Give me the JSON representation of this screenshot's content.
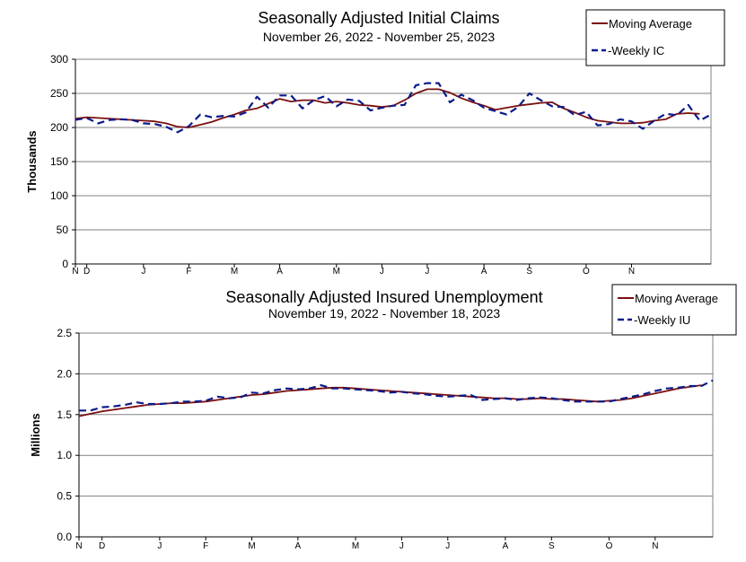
{
  "colors": {
    "moving_average": "#7b0f0f",
    "weekly": "#0b1b8a",
    "grid": "#808080",
    "axis": "#000000"
  },
  "chart_data": [
    {
      "type": "line",
      "title": "Seasonally Adjusted Initial Claims",
      "subtitle": "November 26, 2022 - November 25, 2023",
      "ylabel": "Thousands",
      "xlabel": "",
      "ylim": [
        0,
        300
      ],
      "yticks": [
        "0",
        "50",
        "100",
        "150",
        "200",
        "250",
        "300"
      ],
      "xticks": [
        {
          "label": "N",
          "week": 0
        },
        {
          "label": "D",
          "week": 1
        },
        {
          "label": "J",
          "week": 6
        },
        {
          "label": "F",
          "week": 10
        },
        {
          "label": "M",
          "week": 14
        },
        {
          "label": "A",
          "week": 18
        },
        {
          "label": "M",
          "week": 23
        },
        {
          "label": "J",
          "week": 27
        },
        {
          "label": "J",
          "week": 31
        },
        {
          "label": "A",
          "week": 36
        },
        {
          "label": "S",
          "week": 40
        },
        {
          "label": "O",
          "week": 45
        },
        {
          "label": "N",
          "week": 49
        }
      ],
      "legend": [
        "Moving Average",
        "-Weekly IC"
      ],
      "grid": true,
      "series": [
        {
          "name": "Moving Average",
          "style": "solid",
          "values": [
            213,
            215,
            214,
            213,
            212,
            211,
            210,
            209,
            206,
            201,
            200,
            204,
            208,
            214,
            219,
            225,
            228,
            235,
            242,
            238,
            240,
            240,
            236,
            238,
            236,
            233,
            232,
            230,
            232,
            240,
            250,
            256,
            256,
            251,
            243,
            237,
            232,
            226,
            229,
            232,
            234,
            236,
            237,
            228,
            222,
            215,
            210,
            208,
            206,
            206,
            207,
            210,
            212,
            220,
            221,
            220
          ]
        },
        {
          "name": "Weekly IC",
          "style": "dashed",
          "values": [
            211,
            214,
            206,
            211,
            212,
            211,
            206,
            205,
            201,
            193,
            202,
            219,
            215,
            217,
            216,
            222,
            245,
            229,
            247,
            247,
            228,
            240,
            246,
            231,
            241,
            239,
            225,
            229,
            232,
            233,
            262,
            265,
            265,
            237,
            248,
            240,
            229,
            224,
            219,
            230,
            250,
            240,
            231,
            230,
            218,
            223,
            203,
            205,
            212,
            209,
            198,
            210,
            220,
            218,
            233,
            210,
            219
          ]
        }
      ]
    },
    {
      "type": "line",
      "title": "Seasonally Adjusted Insured Unemployment",
      "subtitle": "November 19, 2022 - November 18, 2023",
      "ylabel": "Millions",
      "xlabel": "",
      "ylim": [
        0.0,
        2.5
      ],
      "yticks": [
        "0.0",
        "0.5",
        "1.0",
        "1.5",
        "2.0",
        "2.5"
      ],
      "xticks": [
        {
          "label": "N",
          "week": 0
        },
        {
          "label": "D",
          "week": 2
        },
        {
          "label": "J",
          "week": 7
        },
        {
          "label": "F",
          "week": 11
        },
        {
          "label": "M",
          "week": 15
        },
        {
          "label": "A",
          "week": 19
        },
        {
          "label": "M",
          "week": 24
        },
        {
          "label": "J",
          "week": 28
        },
        {
          "label": "J",
          "week": 32
        },
        {
          "label": "A",
          "week": 37
        },
        {
          "label": "S",
          "week": 41
        },
        {
          "label": "O",
          "week": 46
        },
        {
          "label": "N",
          "week": 50
        }
      ],
      "legend": [
        "Moving Average",
        "-Weekly IU"
      ],
      "grid": true,
      "series": [
        {
          "name": "Moving Average",
          "style": "solid",
          "values": [
            1.48,
            1.51,
            1.54,
            1.56,
            1.58,
            1.6,
            1.62,
            1.63,
            1.64,
            1.64,
            1.65,
            1.66,
            1.68,
            1.7,
            1.72,
            1.74,
            1.75,
            1.77,
            1.79,
            1.8,
            1.81,
            1.82,
            1.83,
            1.83,
            1.82,
            1.81,
            1.8,
            1.79,
            1.78,
            1.77,
            1.76,
            1.75,
            1.74,
            1.73,
            1.72,
            1.71,
            1.7,
            1.7,
            1.69,
            1.69,
            1.7,
            1.69,
            1.69,
            1.68,
            1.67,
            1.66,
            1.67,
            1.68,
            1.7,
            1.73,
            1.76,
            1.79,
            1.82,
            1.84,
            1.86
          ]
        },
        {
          "name": "Weekly IU",
          "style": "dashed",
          "values": [
            1.55,
            1.55,
            1.59,
            1.6,
            1.62,
            1.65,
            1.63,
            1.63,
            1.64,
            1.66,
            1.66,
            1.67,
            1.72,
            1.7,
            1.71,
            1.77,
            1.76,
            1.8,
            1.82,
            1.81,
            1.82,
            1.86,
            1.82,
            1.82,
            1.81,
            1.8,
            1.79,
            1.77,
            1.78,
            1.76,
            1.75,
            1.73,
            1.72,
            1.73,
            1.74,
            1.68,
            1.69,
            1.7,
            1.68,
            1.7,
            1.71,
            1.7,
            1.68,
            1.66,
            1.66,
            1.66,
            1.66,
            1.69,
            1.72,
            1.75,
            1.79,
            1.82,
            1.83,
            1.85,
            1.85,
            1.92
          ]
        }
      ]
    }
  ]
}
